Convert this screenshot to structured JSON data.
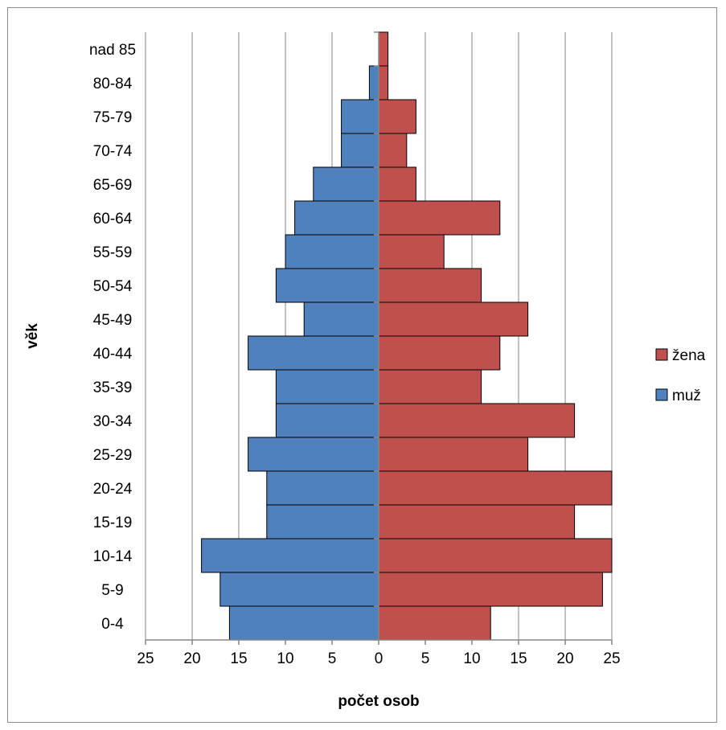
{
  "chart_data": {
    "type": "bar",
    "orientation": "horizontal",
    "layout": "population-pyramid",
    "categories": [
      "0-4",
      "5-9",
      "10-14",
      "15-19",
      "20-24",
      "25-29",
      "30-34",
      "35-39",
      "40-44",
      "45-49",
      "50-54",
      "55-59",
      "60-64",
      "65-69",
      "70-74",
      "75-79",
      "80-84",
      "nad 85"
    ],
    "series": [
      {
        "name": "muž",
        "side": "left",
        "color": "#4f81bd",
        "values": [
          16,
          17,
          19,
          12,
          12,
          14,
          11,
          11,
          14,
          8,
          11,
          10,
          9,
          7,
          4,
          4,
          1,
          0
        ]
      },
      {
        "name": "žena",
        "side": "right",
        "color": "#c0504d",
        "values": [
          12,
          24,
          25,
          21,
          25,
          16,
          21,
          11,
          13,
          16,
          11,
          7,
          13,
          4,
          3,
          4,
          1,
          1
        ]
      }
    ],
    "xlabel": "počet osob",
    "ylabel": "věk",
    "xlim": [
      -25,
      25
    ],
    "x_ticks": [
      -25,
      -20,
      -15,
      -10,
      -5,
      0,
      5,
      10,
      15,
      20,
      25
    ],
    "x_tick_labels": [
      "25",
      "20",
      "15",
      "10",
      "5",
      "0",
      "5",
      "10",
      "15",
      "20",
      "25"
    ],
    "grid": "vertical",
    "legend": {
      "position": "right",
      "entries": [
        "žena",
        "muž"
      ]
    }
  }
}
